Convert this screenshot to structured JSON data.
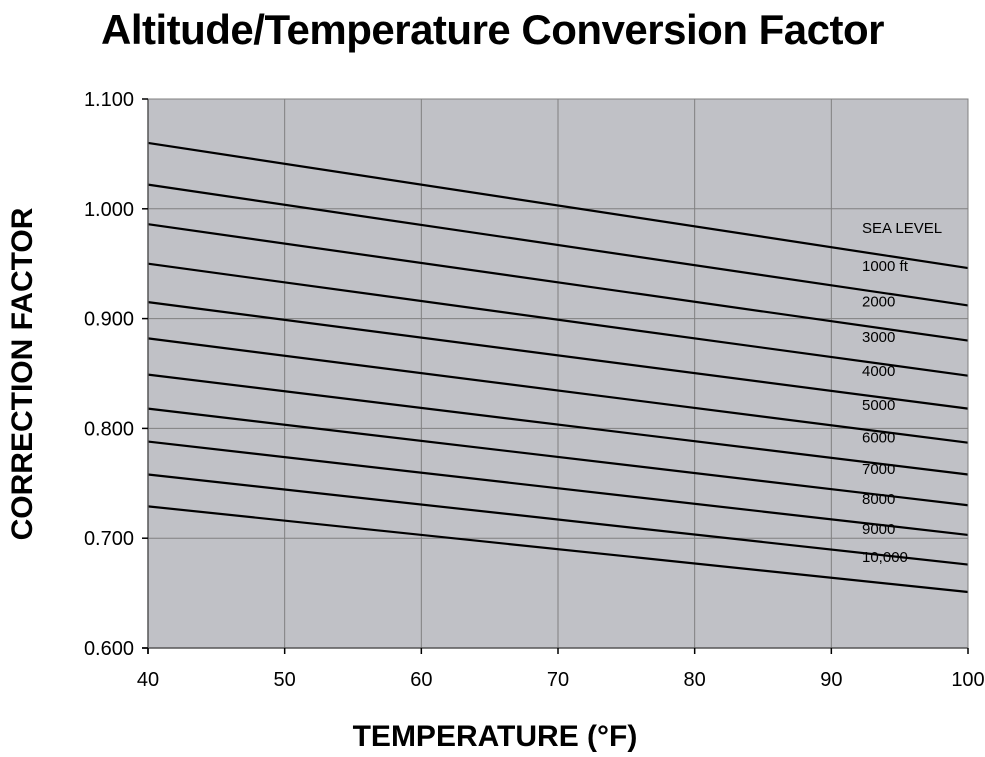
{
  "chart_data": {
    "type": "line",
    "title": "Altitude/Temperature Conversion Factor",
    "xlabel": "TEMPERATURE (°F)",
    "ylabel": "CORRECTION FACTOR",
    "xlim": [
      40,
      100
    ],
    "ylim": [
      0.6,
      1.1
    ],
    "x_ticks": [
      "40",
      "50",
      "60",
      "70",
      "80",
      "90",
      "100"
    ],
    "y_ticks": [
      "0.600",
      "0.700",
      "0.800",
      "0.900",
      "1.000",
      "1.100"
    ],
    "grid": true,
    "colors": {
      "plot_background": "#c0c1c6",
      "grid": "#808080",
      "line": "#000000"
    },
    "x": [
      40,
      100
    ],
    "series": [
      {
        "name": "SEA LEVEL",
        "values": [
          1.06,
          0.946
        ]
      },
      {
        "name": "1000 ft",
        "values": [
          1.022,
          0.912
        ]
      },
      {
        "name": "2000",
        "values": [
          0.986,
          0.88
        ]
      },
      {
        "name": "3000",
        "values": [
          0.95,
          0.848
        ]
      },
      {
        "name": "4000",
        "values": [
          0.915,
          0.818
        ]
      },
      {
        "name": "5000",
        "values": [
          0.882,
          0.787
        ]
      },
      {
        "name": "6000",
        "values": [
          0.849,
          0.758
        ]
      },
      {
        "name": "7000",
        "values": [
          0.818,
          0.73
        ]
      },
      {
        "name": "8000",
        "values": [
          0.788,
          0.703
        ]
      },
      {
        "name": "9000",
        "values": [
          0.758,
          0.676
        ]
      },
      {
        "name": "10,000",
        "values": [
          0.729,
          0.651
        ]
      }
    ]
  }
}
